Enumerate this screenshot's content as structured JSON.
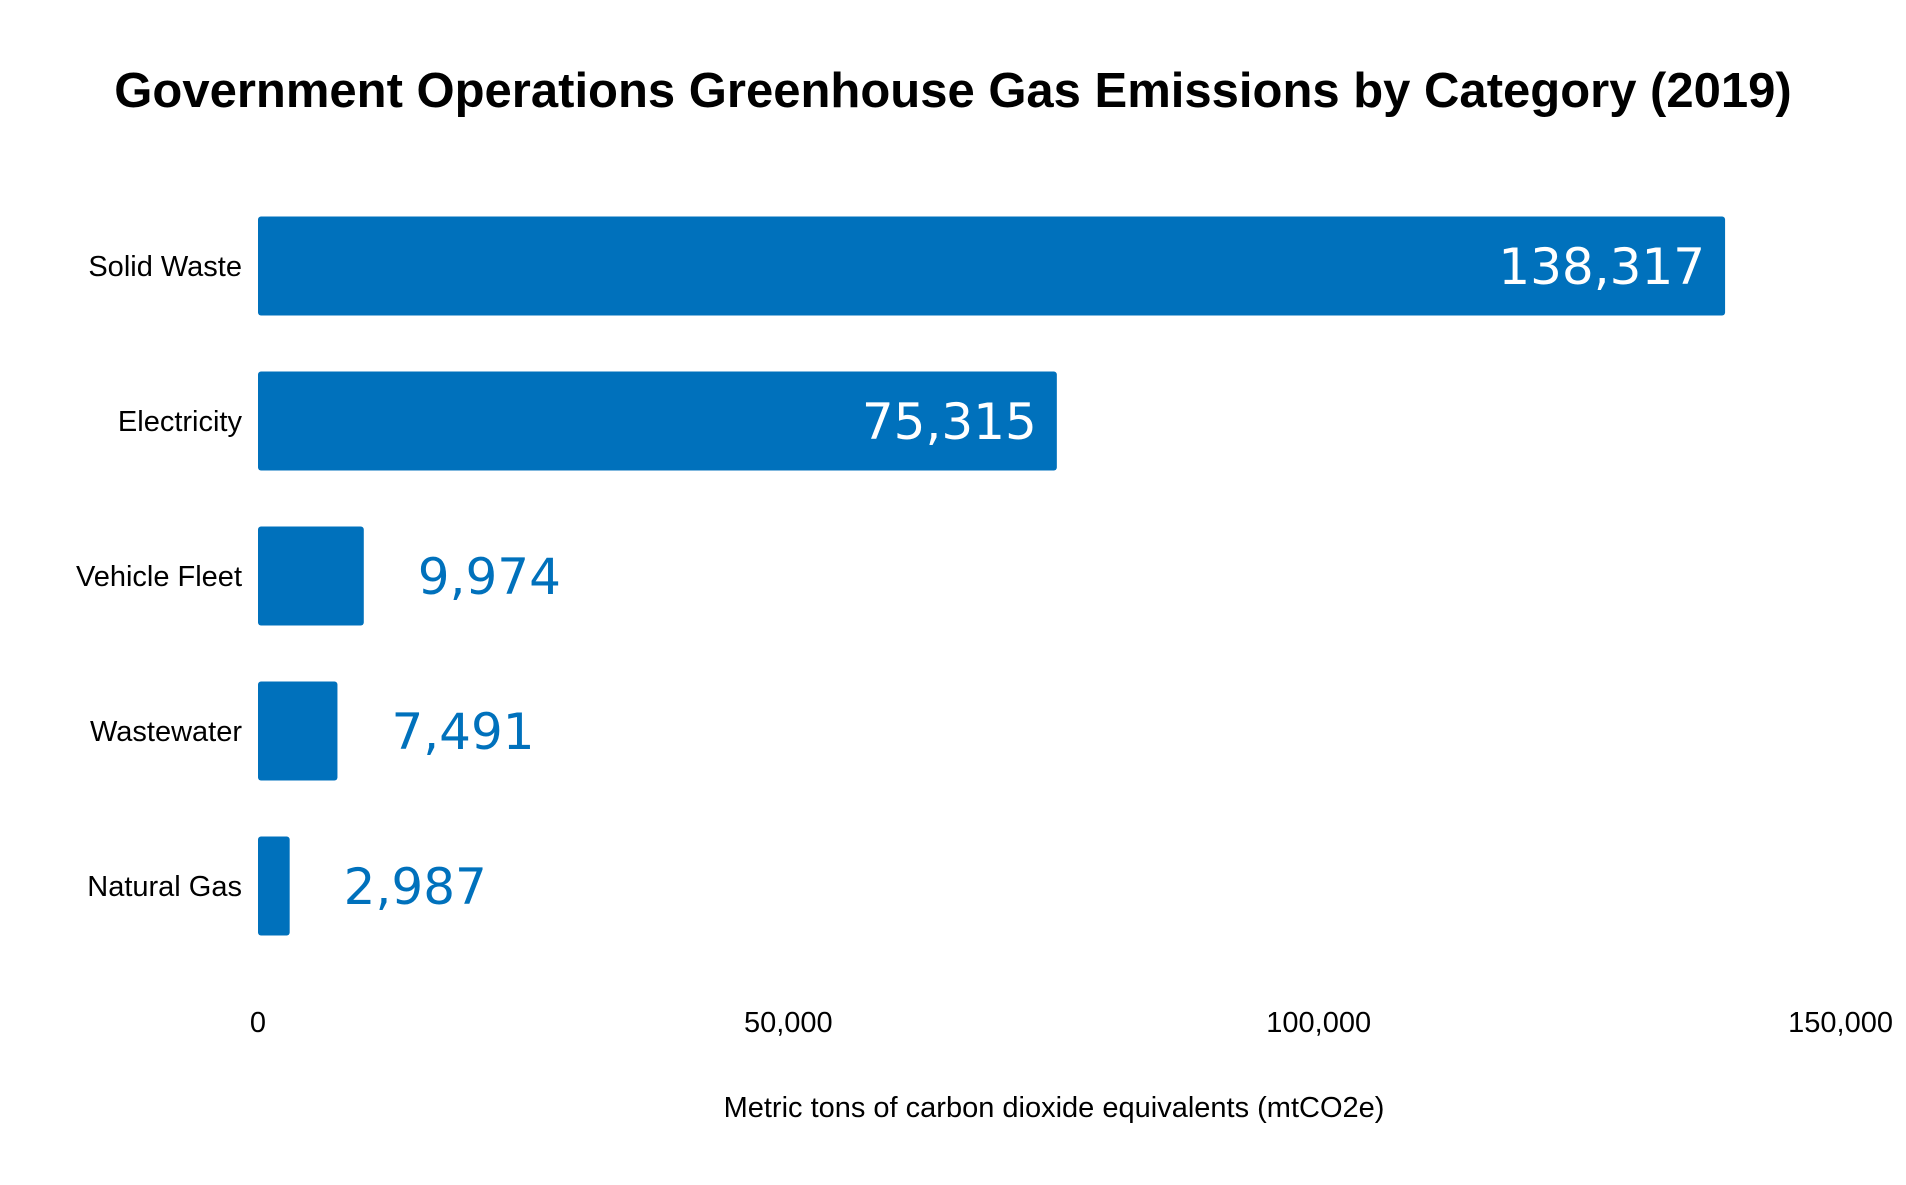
{
  "chart_data": {
    "type": "bar",
    "orientation": "horizontal",
    "title": "Government Operations Greenhouse Gas Emissions by Category (2019)",
    "xlabel": "Metric tons of carbon dioxide equivalents (mtCO2e)",
    "ylabel": "",
    "categories": [
      "Solid Waste",
      "Electricity",
      "Vehicle Fleet",
      "Wastewater",
      "Natural Gas"
    ],
    "values": [
      138317,
      75315,
      9974,
      7491,
      2987
    ],
    "value_labels": [
      "138,317",
      "75,315",
      "9,974",
      "7,491",
      "2,987"
    ],
    "xlim": [
      0,
      150000
    ],
    "xticks": [
      0,
      50000,
      100000,
      150000
    ],
    "xtick_labels": [
      "0",
      "50,000",
      "100,000",
      "150,000"
    ],
    "grid": false,
    "legend": "none",
    "colors": {
      "bar": "#0071BC",
      "label_inside": "#FFFFFF",
      "label_outside": "#0071BC"
    }
  }
}
